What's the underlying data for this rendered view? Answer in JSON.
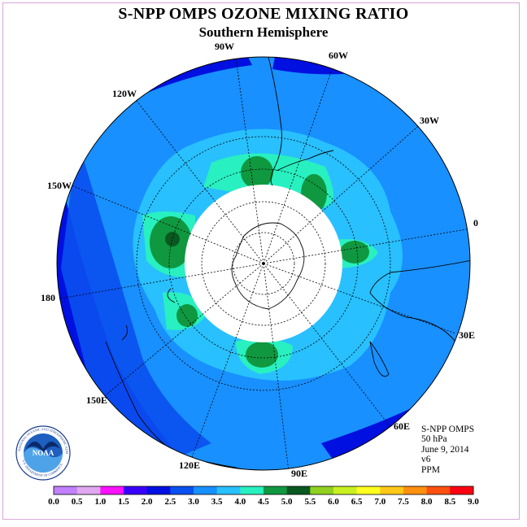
{
  "header": {
    "title": "S-NPP OMPS OZONE MIXING RATIO",
    "subtitle": "Southern Hemisphere"
  },
  "map": {
    "projection": "polar stereographic, south pole",
    "longitude_labels": [
      {
        "text": "90W",
        "lon": -90
      },
      {
        "text": "60W",
        "lon": -60
      },
      {
        "text": "30W",
        "lon": -30
      },
      {
        "text": "0",
        "lon": 0
      },
      {
        "text": "30E",
        "lon": 30
      },
      {
        "text": "60E",
        "lon": 60
      },
      {
        "text": "90E",
        "lon": 90
      },
      {
        "text": "120E",
        "lon": 120
      },
      {
        "text": "150E",
        "lon": 150
      },
      {
        "text": "180",
        "lon": 180
      },
      {
        "text": "150W",
        "lon": -150
      },
      {
        "text": "120W",
        "lon": -120
      }
    ],
    "missing_data_region": "polar night (white disc)"
  },
  "info": {
    "instrument": "S-NPP OMPS",
    "level": "50 hPa",
    "date": "June 9, 2014",
    "version": "v6",
    "units": "PPM"
  },
  "colorbar": {
    "ticks": [
      "0.0",
      "0.5",
      "1.0",
      "1.5",
      "2.0",
      "2.5",
      "3.0",
      "3.5",
      "4.0",
      "4.5",
      "5.0",
      "5.5",
      "6.0",
      "6.5",
      "7.0",
      "7.5",
      "8.0",
      "8.5",
      "9.0"
    ],
    "colors": [
      "#c080ff",
      "#e0a8f0",
      "#ff10ff",
      "#3a00ff",
      "#0010e0",
      "#0a50f0",
      "#1890ff",
      "#28c0ff",
      "#28f0c0",
      "#109840",
      "#085820",
      "#90d020",
      "#c8f020",
      "#ffff20",
      "#ffc818",
      "#ff9010",
      "#ff5010",
      "#ff0010",
      "#906040"
    ]
  },
  "logo": {
    "text": "NOAA",
    "ring_text": "NATIONAL OCEANIC AND ATMOSPHERIC ADMINISTRATION",
    "ring_text_bottom": "U.S. DEPARTMENT OF COMMERCE"
  }
}
